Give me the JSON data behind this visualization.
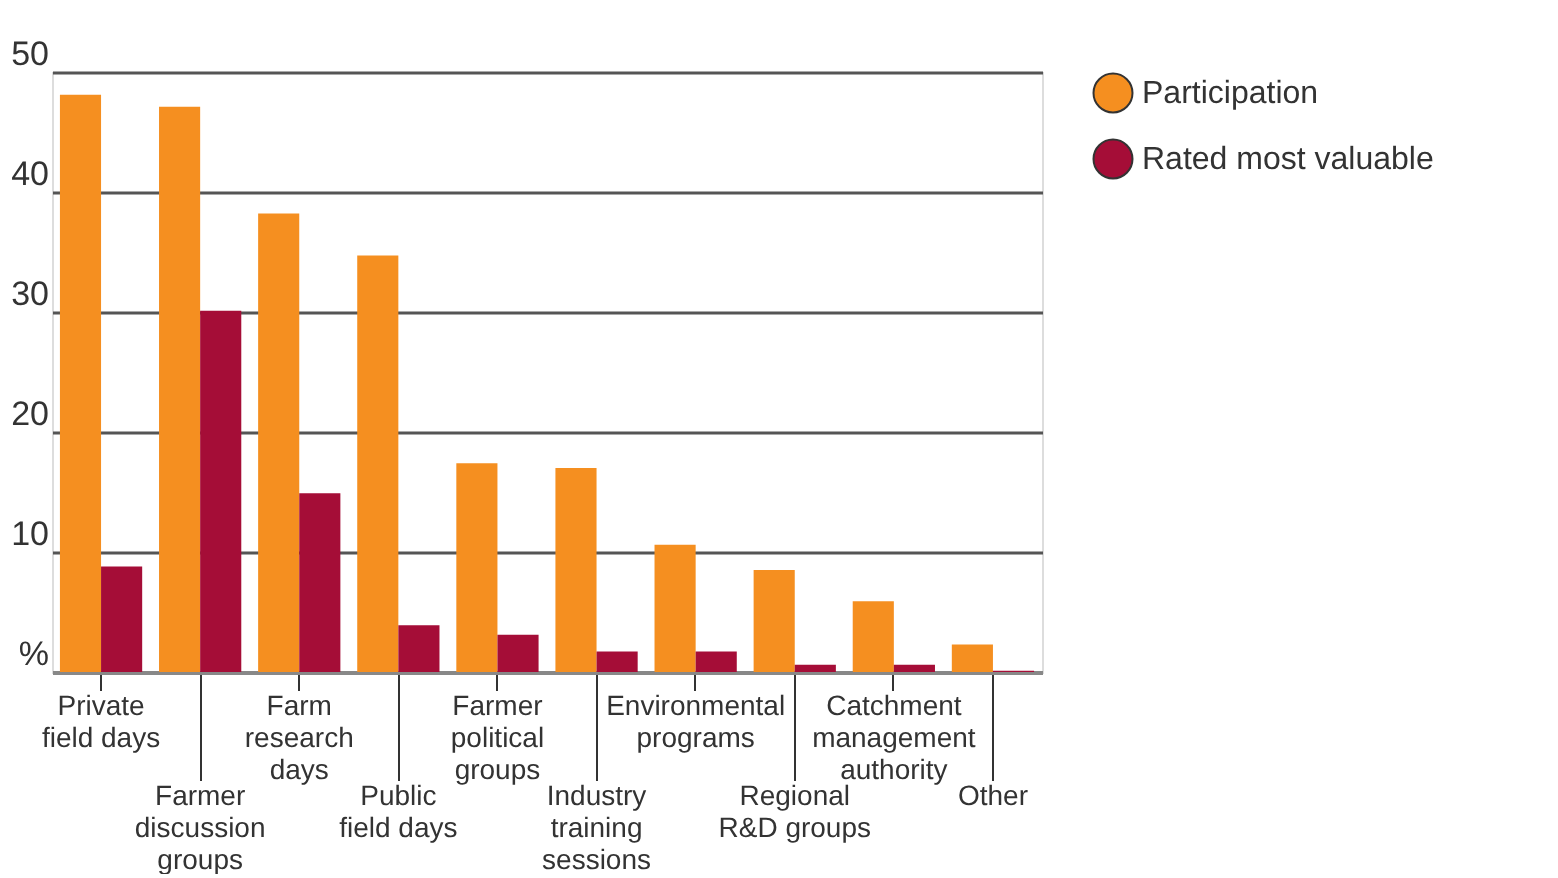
{
  "chart_data": {
    "type": "bar",
    "categories": [
      "Private field days",
      "Farmer discussion groups",
      "Farm research days",
      "Public field days",
      "Farmer political groups",
      "Industry training sessions",
      "Environmental programs",
      "Regional R&D groups",
      "Catchment management authority",
      "Other"
    ],
    "series": [
      {
        "name": "Participation",
        "color": "#f58f20",
        "values": [
          48.1,
          47.1,
          38.2,
          34.7,
          17.4,
          17.0,
          10.6,
          8.5,
          5.9,
          2.3
        ]
      },
      {
        "name": "Rated most valuable",
        "color": "#a50d37",
        "values": [
          8.8,
          30.1,
          14.9,
          3.9,
          3.1,
          1.7,
          1.7,
          0.6,
          0.6,
          0.1
        ]
      }
    ],
    "ylim": [
      0,
      50
    ],
    "yticks": [
      {
        "value": 0,
        "label": "%"
      },
      10,
      20,
      30,
      40,
      50
    ],
    "grid": "y",
    "legend": "top right"
  }
}
